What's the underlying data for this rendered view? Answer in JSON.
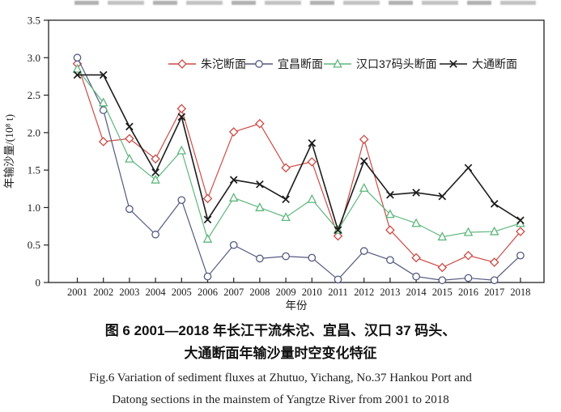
{
  "chart": {
    "y_axis": {
      "label": "年输沙量/(10⁸ t)",
      "tick_labels": [
        "0",
        "0.5",
        "1.0",
        "1.5",
        "2.0",
        "2.5",
        "3.0",
        "3.5"
      ]
    },
    "x_axis": {
      "label": "年份"
    },
    "chart_data": {
      "type": "line",
      "title": "",
      "x": [
        2001,
        2002,
        2003,
        2004,
        2005,
        2006,
        2007,
        2008,
        2009,
        2010,
        2011,
        2012,
        2013,
        2014,
        2015,
        2016,
        2017,
        2018
      ],
      "xlabel": "年份",
      "ylabel": "年输沙量/(10⁸ t)",
      "ylim": [
        0,
        3.5
      ],
      "ytick_step": 0.5,
      "grid": false,
      "legend_position": "top-inside",
      "series": [
        {
          "name": "朱沱断面",
          "marker": "diamond",
          "color": "#cc4b45",
          "values": [
            2.92,
            1.88,
            1.92,
            1.65,
            2.32,
            1.12,
            2.01,
            2.12,
            1.53,
            1.61,
            0.62,
            1.91,
            0.7,
            0.33,
            0.2,
            0.36,
            0.27,
            0.68
          ]
        },
        {
          "name": "宜昌断面",
          "marker": "circle",
          "color": "#54597e",
          "values": [
            3.0,
            2.3,
            0.98,
            0.64,
            1.1,
            0.08,
            0.5,
            0.32,
            0.35,
            0.33,
            0.04,
            0.42,
            0.3,
            0.08,
            0.03,
            0.06,
            0.03,
            0.36
          ]
        },
        {
          "name": "汉口37码头断面",
          "marker": "triangle",
          "color": "#5eb77d",
          "values": [
            2.85,
            2.4,
            1.65,
            1.37,
            1.76,
            0.58,
            1.13,
            1.0,
            0.87,
            1.11,
            0.7,
            1.26,
            0.91,
            0.79,
            0.61,
            0.67,
            0.68,
            0.79
          ]
        },
        {
          "name": "大通断面",
          "marker": "x",
          "color": "#1c1c1c",
          "values": [
            2.77,
            2.77,
            2.08,
            1.47,
            2.21,
            0.84,
            1.37,
            1.31,
            1.11,
            1.86,
            0.7,
            1.62,
            1.17,
            1.2,
            1.15,
            1.53,
            1.05,
            0.83
          ]
        }
      ]
    }
  },
  "captions": {
    "zh_line1": "图 6  2001—2018 年长江干流朱沱、宜昌、汉口 37 码头、",
    "zh_line2": "大通断面年输沙量时空变化特征",
    "en_line1": "Fig.6 Variation of sediment fluxes at Zhutuo, Yichang, No.37 Hankou Port and",
    "en_line2": "Datong sections in the mainstem of Yangtze River from 2001 to 2018"
  }
}
